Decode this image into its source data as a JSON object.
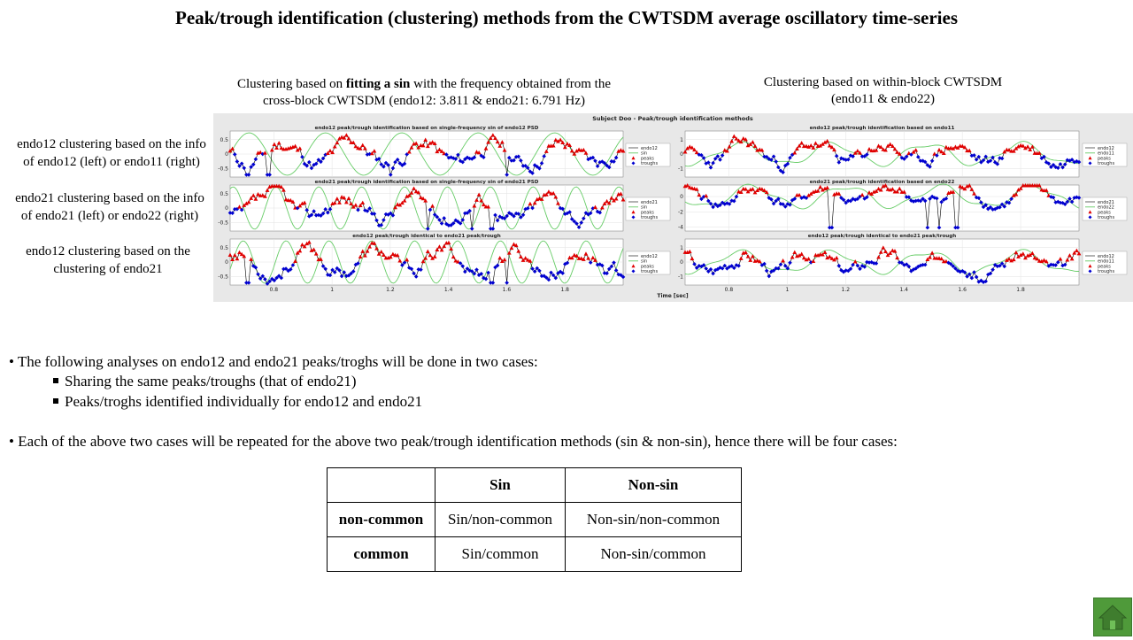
{
  "title": "Peak/trough identification (clustering) methods from the CWTSDM average oscillatory time-series",
  "captions": {
    "left": {
      "before": "Clustering  based on ",
      "bold": "fitting a sin",
      "after": " with the frequency  obtained from the",
      "line2": "cross-block CWTSDM (endo12:  3.811 & endo21:  6.791 Hz)"
    },
    "right": {
      "line1": "Clustering  based on within-block  CWTSDM",
      "line2": "(endo11  & endo22)"
    }
  },
  "row_labels": [
    {
      "line1": "endo12 clustering  based on the info",
      "line2": "of endo12 (left)  or endo11 (right)"
    },
    {
      "line1": "endo21 clustering  based on the info",
      "line2": "of endo21 (left)  or endo22 (right)"
    },
    {
      "line1": "endo12 clustering  based on the",
      "line2": "clustering  of endo21"
    }
  ],
  "bullets": {
    "b1": "• The following  analyses on endo12 and endo21 peaks/troghs will  be done in two cases:",
    "sub1": "Sharing the same peaks/troughs (that of endo21)",
    "sub2": "Peaks/troghs identified  individually  for endo12 and endo21",
    "b2": "• Each of the above two cases will  be repeated for the above two peak/trough identification  methods (sin & non-sin), hence there will  be four cases:"
  },
  "table": {
    "header": [
      "",
      "Sin",
      "Non-sin"
    ],
    "rows": [
      [
        "non-common",
        "Sin/non-common",
        "Non-sin/non-common"
      ],
      [
        "common",
        "Sin/common",
        "Non-sin/common"
      ]
    ]
  },
  "colors": {
    "peaks": "#e00000",
    "troughs": "#0000d0",
    "sin": "#66cc66",
    "signal": "#000000",
    "panel_bg": "#e8e8e8"
  },
  "chart_data": {
    "type": "line",
    "suptitle": "Subject Doo - Peak/trough identification methods",
    "xlabel": "Time [sec]",
    "xticks": [
      0.8,
      1,
      1.2,
      1.4,
      1.6,
      1.8
    ],
    "xlim": [
      0.65,
      2.0
    ],
    "panels": [
      {
        "title": "endo12 peak/trough identification based on single-frequency sin of endo12 PSD",
        "yticks": [
          0.5,
          0,
          -0.5
        ],
        "ylim": [
          -0.8,
          0.8
        ],
        "legend": [
          "endo12",
          "sin",
          "peaks",
          "troughs"
        ],
        "sin_freq": 3.811,
        "method": "sin",
        "seed": 11,
        "amp": 0.45,
        "spikes": [
          0.71,
          0.78,
          1.2,
          1.6
        ]
      },
      {
        "title": "endo12 peak/trough identification based on endo11",
        "yticks": [
          1,
          0,
          -1
        ],
        "ylim": [
          -1.6,
          1.6
        ],
        "legend": [
          "endo12",
          "endo11",
          "peaks",
          "troughs"
        ],
        "method": "ref",
        "seed": 23,
        "amp": 0.8,
        "spikes": []
      },
      {
        "title": "endo21 peak/trough identification based on single-frequency sin of endo21 PSD",
        "yticks": [
          0.5,
          0,
          -0.5
        ],
        "ylim": [
          -0.8,
          0.8
        ],
        "legend": [
          "endo21",
          "sin",
          "peaks",
          "troughs"
        ],
        "sin_freq": 6.791,
        "method": "sin",
        "seed": 37,
        "amp": 0.45,
        "spikes": [
          1.33,
          1.48,
          1.55
        ]
      },
      {
        "title": "endo21 peak/trough identification based on endo22",
        "yticks": [
          0,
          -2,
          -4
        ],
        "ylim": [
          -4.5,
          1.5
        ],
        "legend": [
          "endo21",
          "endo22",
          "peaks",
          "troughs"
        ],
        "method": "ref",
        "seed": 41,
        "amp": 1.2,
        "spikes": [
          1.15,
          1.48,
          1.52,
          1.58
        ]
      },
      {
        "title": "endo12 peak/trough identical to endo21 peak/trough",
        "yticks": [
          0.5,
          0,
          -0.5
        ],
        "ylim": [
          -0.8,
          0.8
        ],
        "legend": [
          "endo12",
          "sin",
          "peaks",
          "troughs"
        ],
        "sin_freq": 6.791,
        "method": "sin",
        "seed": 53,
        "amp": 0.45,
        "spikes": [
          0.71,
          1.55,
          1.6
        ]
      },
      {
        "title": "endo12 peak/trough identical to endo21 peak/trough",
        "yticks": [
          1,
          0,
          -1
        ],
        "ylim": [
          -1.6,
          1.6
        ],
        "legend": [
          "endo12",
          "endo11",
          "peaks",
          "troughs"
        ],
        "method": "ref",
        "seed": 67,
        "amp": 0.8,
        "spikes": []
      }
    ]
  }
}
